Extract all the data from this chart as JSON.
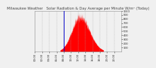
{
  "title": "Milwaukee Weather   Solar Radiation & Day Average per Minute W/m² (Today)",
  "title_fontsize": 3.8,
  "title_color": "#444444",
  "background_color": "#f0f0f0",
  "plot_bg_color": "#f0f0f0",
  "grid_color": "#aaaaaa",
  "bar_color": "#ff0000",
  "line_color": "#0000cc",
  "line_width": 0.7,
  "num_minutes": 1440,
  "sunrise_minute": 420,
  "sunset_minute": 1140,
  "peak_minute": 750,
  "peak_value": 850,
  "current_minute": 480,
  "ylim": [
    0,
    1000
  ],
  "ytick_values": [
    100,
    200,
    300,
    400,
    500,
    600,
    700,
    800,
    900,
    1000
  ],
  "xtick_hours": [
    0,
    2,
    4,
    6,
    8,
    10,
    12,
    14,
    16,
    18,
    20,
    22
  ],
  "xlabel_fontsize": 2.8,
  "ylabel_fontsize": 2.8,
  "seed": 77
}
